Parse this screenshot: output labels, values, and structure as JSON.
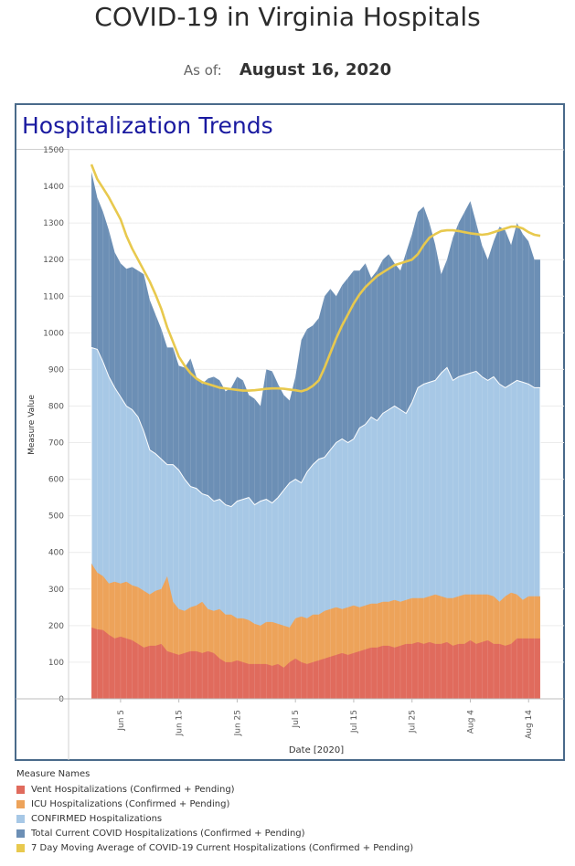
{
  "header": {
    "title": "COVID-19 in Virginia Hospitals",
    "asof_label": "As of:",
    "asof_date": "August 16, 2020"
  },
  "panel": {
    "title": "Hospitalization Trends"
  },
  "legend": {
    "title": "Measure Names",
    "items": [
      {
        "label": "Vent Hospitalizations (Confirmed + Pending)",
        "color": "#e06b5d"
      },
      {
        "label": "ICU Hospitalizations (Confirmed + Pending)",
        "color": "#eda35a"
      },
      {
        "label": "CONFIRMED Hospitalizations",
        "color": "#a7c8e6"
      },
      {
        "label": "Total Current COVID Hospitalizations (Confirmed + Pending)",
        "color": "#6c8fb5"
      },
      {
        "label": "7 Day Moving Average of COVID-19 Current Hospitalizations (Confirmed + Pending)",
        "color": "#e8c94e"
      }
    ]
  },
  "chart_data": {
    "type": "area",
    "xlabel": "Date [2020]",
    "ylabel": "Measure Value",
    "ylim": [
      0,
      1500
    ],
    "yticks": [
      0,
      100,
      200,
      300,
      400,
      500,
      600,
      700,
      800,
      900,
      1000,
      1100,
      1200,
      1300,
      1400,
      1500
    ],
    "xtick_labels": [
      {
        "label": "Jun 5",
        "date": "2020-06-05"
      },
      {
        "label": "Jun 15",
        "date": "2020-06-15"
      },
      {
        "label": "Jun 25",
        "date": "2020-06-25"
      },
      {
        "label": "Jul 5",
        "date": "2020-07-05"
      },
      {
        "label": "Jul 15",
        "date": "2020-07-15"
      },
      {
        "label": "Jul 25",
        "date": "2020-07-25"
      },
      {
        "label": "Aug 4",
        "date": "2020-08-04"
      },
      {
        "label": "Aug 14",
        "date": "2020-08-14"
      }
    ],
    "x": [
      "2020-05-31",
      "2020-06-01",
      "2020-06-02",
      "2020-06-03",
      "2020-06-04",
      "2020-06-05",
      "2020-06-06",
      "2020-06-07",
      "2020-06-08",
      "2020-06-09",
      "2020-06-10",
      "2020-06-11",
      "2020-06-12",
      "2020-06-13",
      "2020-06-14",
      "2020-06-15",
      "2020-06-16",
      "2020-06-17",
      "2020-06-18",
      "2020-06-19",
      "2020-06-20",
      "2020-06-21",
      "2020-06-22",
      "2020-06-23",
      "2020-06-24",
      "2020-06-25",
      "2020-06-26",
      "2020-06-27",
      "2020-06-28",
      "2020-06-29",
      "2020-06-30",
      "2020-07-01",
      "2020-07-02",
      "2020-07-03",
      "2020-07-04",
      "2020-07-05",
      "2020-07-06",
      "2020-07-07",
      "2020-07-08",
      "2020-07-09",
      "2020-07-10",
      "2020-07-11",
      "2020-07-12",
      "2020-07-13",
      "2020-07-14",
      "2020-07-15",
      "2020-07-16",
      "2020-07-17",
      "2020-07-18",
      "2020-07-19",
      "2020-07-20",
      "2020-07-21",
      "2020-07-22",
      "2020-07-23",
      "2020-07-24",
      "2020-07-25",
      "2020-07-26",
      "2020-07-27",
      "2020-07-28",
      "2020-07-29",
      "2020-07-30",
      "2020-07-31",
      "2020-08-01",
      "2020-08-02",
      "2020-08-03",
      "2020-08-04",
      "2020-08-05",
      "2020-08-06",
      "2020-08-07",
      "2020-08-08",
      "2020-08-09",
      "2020-08-10",
      "2020-08-11",
      "2020-08-12",
      "2020-08-13",
      "2020-08-14",
      "2020-08-15",
      "2020-08-16"
    ],
    "series": [
      {
        "name": "Vent Hospitalizations (Confirmed + Pending)",
        "color": "#e06b5d",
        "values": [
          195,
          190,
          188,
          175,
          165,
          170,
          165,
          160,
          150,
          140,
          145,
          145,
          150,
          130,
          125,
          120,
          125,
          130,
          130,
          125,
          130,
          125,
          110,
          100,
          100,
          105,
          100,
          95,
          95,
          95,
          95,
          90,
          95,
          85,
          100,
          110,
          100,
          95,
          100,
          105,
          110,
          115,
          120,
          125,
          120,
          125,
          130,
          135,
          140,
          140,
          145,
          145,
          140,
          145,
          150,
          150,
          155,
          150,
          155,
          150,
          150,
          155,
          145,
          150,
          150,
          160,
          150,
          155,
          160,
          150,
          150,
          145,
          150,
          165,
          165,
          165,
          165,
          165
        ]
      },
      {
        "name": "ICU Hospitalizations (Confirmed + Pending)",
        "color": "#eda35a",
        "values": [
          370,
          345,
          335,
          315,
          320,
          315,
          320,
          310,
          305,
          295,
          285,
          295,
          300,
          335,
          265,
          245,
          240,
          250,
          255,
          265,
          245,
          240,
          245,
          230,
          230,
          220,
          220,
          215,
          205,
          200,
          210,
          210,
          205,
          200,
          195,
          220,
          225,
          220,
          230,
          230,
          240,
          245,
          250,
          245,
          250,
          255,
          250,
          255,
          260,
          260,
          265,
          265,
          270,
          265,
          270,
          275,
          275,
          275,
          280,
          285,
          280,
          275,
          275,
          280,
          285,
          285,
          285,
          285,
          285,
          280,
          265,
          280,
          290,
          285,
          270,
          280,
          280,
          280
        ]
      },
      {
        "name": "CONFIRMED Hospitalizations",
        "color": "#a7c8e6",
        "values": [
          960,
          955,
          920,
          880,
          850,
          825,
          800,
          790,
          770,
          730,
          680,
          670,
          655,
          640,
          640,
          625,
          600,
          580,
          575,
          560,
          555,
          540,
          545,
          530,
          525,
          540,
          545,
          550,
          530,
          540,
          545,
          535,
          550,
          570,
          590,
          600,
          590,
          620,
          640,
          655,
          660,
          680,
          700,
          710,
          700,
          710,
          740,
          750,
          770,
          760,
          780,
          790,
          800,
          790,
          780,
          810,
          850,
          860,
          865,
          870,
          890,
          905,
          870,
          880,
          885,
          890,
          895,
          880,
          870,
          880,
          860,
          850,
          860,
          870,
          865,
          860,
          850,
          850
        ]
      },
      {
        "name": "Total Current COVID Hospitalizations (Confirmed + Pending)",
        "color": "#6c8fb5",
        "values": [
          1440,
          1370,
          1330,
          1280,
          1220,
          1190,
          1175,
          1180,
          1170,
          1160,
          1090,
          1050,
          1010,
          960,
          960,
          910,
          905,
          930,
          880,
          860,
          875,
          880,
          870,
          840,
          850,
          880,
          870,
          830,
          820,
          800,
          900,
          895,
          860,
          830,
          815,
          880,
          980,
          1010,
          1020,
          1040,
          1100,
          1120,
          1100,
          1130,
          1150,
          1170,
          1170,
          1190,
          1150,
          1170,
          1200,
          1215,
          1190,
          1170,
          1220,
          1270,
          1330,
          1345,
          1300,
          1240,
          1160,
          1200,
          1260,
          1300,
          1330,
          1360,
          1300,
          1240,
          1200,
          1250,
          1290,
          1280,
          1240,
          1300,
          1270,
          1250,
          1200,
          1200
        ]
      },
      {
        "name": "7 Day Moving Average of COVID-19 Current Hospitalizations (Confirmed + Pending)",
        "color": "#e8c94e",
        "values": [
          1460,
          1420,
          1395,
          1370,
          1340,
          1310,
          1265,
          1230,
          1200,
          1170,
          1140,
          1105,
          1065,
          1015,
          975,
          935,
          910,
          890,
          875,
          865,
          860,
          855,
          850,
          848,
          846,
          844,
          842,
          842,
          843,
          845,
          847,
          848,
          848,
          847,
          845,
          843,
          840,
          845,
          855,
          870,
          905,
          945,
          985,
          1020,
          1050,
          1080,
          1105,
          1125,
          1140,
          1155,
          1165,
          1175,
          1185,
          1190,
          1195,
          1200,
          1215,
          1240,
          1260,
          1270,
          1278,
          1280,
          1280,
          1278,
          1275,
          1272,
          1270,
          1268,
          1270,
          1275,
          1280,
          1285,
          1290,
          1290,
          1285,
          1275,
          1268,
          1265
        ]
      }
    ]
  }
}
